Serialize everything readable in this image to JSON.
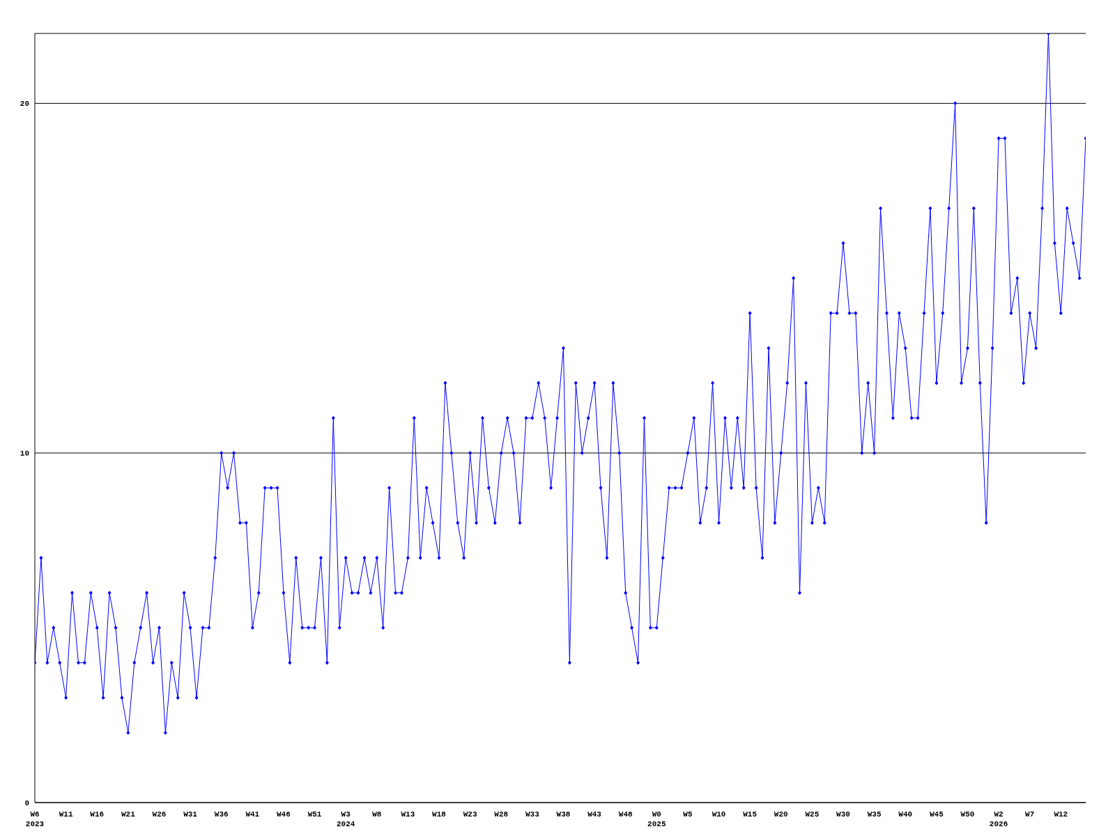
{
  "chart_data": {
    "type": "line",
    "categories": [
      "W6\n2023",
      null,
      null,
      null,
      null,
      "W11",
      null,
      null,
      null,
      null,
      "W16",
      null,
      null,
      null,
      null,
      "W21",
      null,
      null,
      null,
      null,
      "W26",
      null,
      null,
      null,
      null,
      "W31",
      null,
      null,
      null,
      null,
      "W36",
      null,
      null,
      null,
      null,
      "W41",
      null,
      null,
      null,
      null,
      "W46",
      null,
      null,
      null,
      null,
      "W51",
      null,
      null,
      null,
      null,
      "W3\n2024",
      null,
      null,
      null,
      null,
      "W8",
      null,
      null,
      null,
      null,
      "W13",
      null,
      null,
      null,
      null,
      "W18",
      null,
      null,
      null,
      null,
      "W23",
      null,
      null,
      null,
      null,
      "W28",
      null,
      null,
      null,
      null,
      "W33",
      null,
      null,
      null,
      null,
      "W38",
      null,
      null,
      null,
      null,
      "W43",
      null,
      null,
      null,
      null,
      "W48",
      null,
      null,
      null,
      null,
      "W0\n2025",
      null,
      null,
      null,
      null,
      "W5",
      null,
      null,
      null,
      null,
      "W10",
      null,
      null,
      null,
      null,
      "W15",
      null,
      null,
      null,
      null,
      "W20",
      null,
      null,
      null,
      null,
      "W25",
      null,
      null,
      null,
      null,
      "W30",
      null,
      null,
      null,
      null,
      "W35",
      null,
      null,
      null,
      null,
      "W40",
      null,
      null,
      null,
      null,
      "W45",
      null,
      null,
      null,
      null,
      "W50",
      null,
      null,
      null,
      null,
      "W2\n2026",
      null,
      null,
      null,
      null,
      "W7",
      null,
      null,
      null,
      null,
      "W12",
      null,
      null,
      null,
      null
    ],
    "series": [
      {
        "color": "#0000ff",
        "values": [
          4,
          7,
          4,
          5,
          4,
          3,
          6,
          4,
          4,
          6,
          5,
          3,
          6,
          5,
          3,
          2,
          4,
          5,
          6,
          4,
          5,
          2,
          4,
          3,
          6,
          5,
          3,
          5,
          5,
          7,
          10,
          9,
          10,
          8,
          8,
          5,
          6,
          9,
          9,
          9,
          6,
          4,
          7,
          5,
          5,
          5,
          7,
          4,
          11,
          5,
          7,
          6,
          6,
          7,
          6,
          7,
          5,
          9,
          6,
          6,
          7,
          11,
          7,
          9,
          8,
          7,
          12,
          10,
          8,
          7,
          10,
          8,
          11,
          9,
          8,
          10,
          11,
          10,
          8,
          11,
          11,
          12,
          11,
          9,
          11,
          13,
          4,
          12,
          10,
          11,
          12,
          9,
          7,
          12,
          10,
          6,
          5,
          4,
          11,
          5,
          5,
          7,
          9,
          9,
          9,
          10,
          11,
          8,
          9,
          12,
          8,
          11,
          9,
          11,
          9,
          14,
          9,
          7,
          13,
          8,
          10,
          12,
          15,
          6,
          12,
          8,
          9,
          8,
          14,
          14,
          16,
          14,
          14,
          10,
          12,
          10,
          17,
          14,
          11,
          14,
          13,
          11,
          11,
          14,
          17,
          12,
          14,
          17,
          20,
          12,
          13,
          17,
          12,
          8,
          13,
          19,
          19,
          14,
          15,
          12,
          14,
          13,
          17,
          22,
          16,
          14,
          17,
          16,
          15,
          19
        ]
      }
    ],
    "ylim": [
      0,
      22
    ],
    "yticks": [
      0,
      10,
      20
    ],
    "grid": "y",
    "marker": "diamond",
    "line_style": "solid"
  }
}
